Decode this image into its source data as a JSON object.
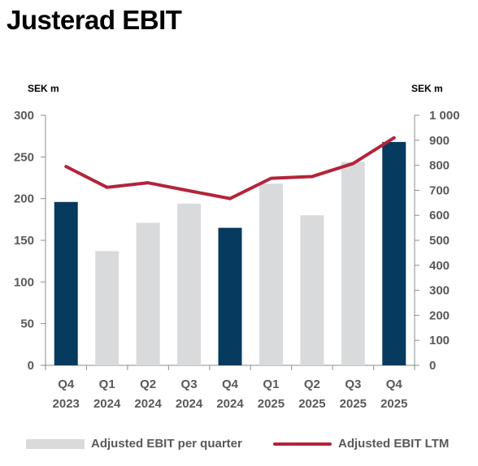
{
  "title": "Justerad EBIT",
  "units": {
    "left": "SEK m",
    "right": "SEK m"
  },
  "colors": {
    "bar_light": "#d9dadc",
    "bar_dark": "#063a5f",
    "line": "#b3243a",
    "axis": "#8c8c8c"
  },
  "chart_data": {
    "type": "bar",
    "categories": [
      {
        "quarter": "Q4",
        "year": "2023"
      },
      {
        "quarter": "Q1",
        "year": "2024"
      },
      {
        "quarter": "Q2",
        "year": "2024"
      },
      {
        "quarter": "Q3",
        "year": "2024"
      },
      {
        "quarter": "Q4",
        "year": "2024"
      },
      {
        "quarter": "Q1",
        "year": "2025"
      },
      {
        "quarter": "Q2",
        "year": "2025"
      },
      {
        "quarter": "Q3",
        "year": "2025"
      },
      {
        "quarter": "Q4",
        "year": "2025"
      }
    ],
    "series": [
      {
        "name": "Adjusted EBIT per quarter",
        "type": "bar",
        "axis": "left",
        "values": [
          196,
          137,
          171,
          194,
          165,
          218,
          180,
          244,
          268
        ],
        "highlight": [
          true,
          false,
          false,
          false,
          true,
          false,
          false,
          false,
          true
        ]
      },
      {
        "name": "Adjusted EBIT LTM",
        "type": "line",
        "axis": "right",
        "values": [
          795,
          712,
          730,
          698,
          667,
          748,
          755,
          807,
          910
        ]
      }
    ],
    "left_axis": {
      "min": 0,
      "max": 300,
      "ticks": [
        "0",
        "50",
        "100",
        "150",
        "200",
        "250",
        "300"
      ]
    },
    "right_axis": {
      "min": 0,
      "max": 1000,
      "ticks": [
        "0",
        "100",
        "200",
        "300",
        "400",
        "500",
        "600",
        "700",
        "800",
        "900",
        "1 000"
      ]
    },
    "legend_position": "bottom"
  }
}
